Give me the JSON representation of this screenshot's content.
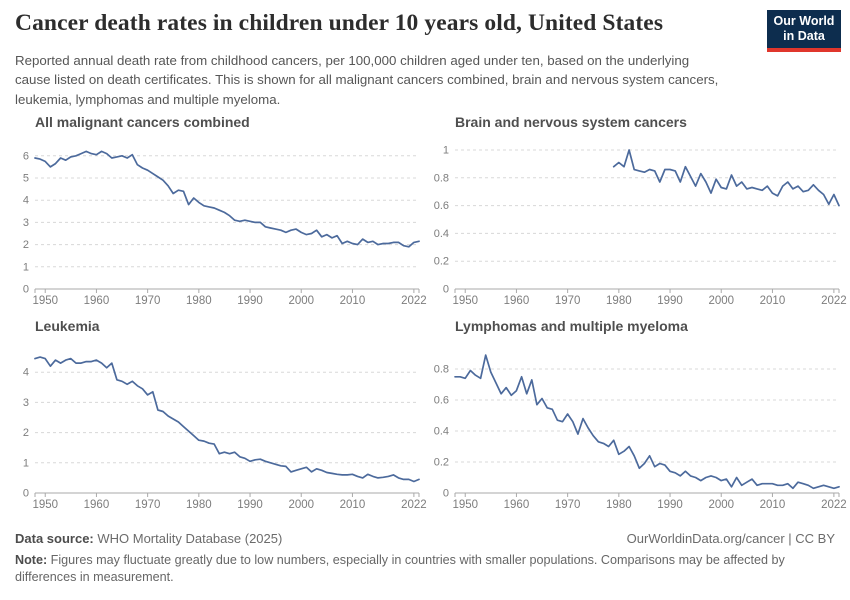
{
  "header": {
    "title": "Cancer death rates in children under 10 years old, United States",
    "subtitle": "Reported annual death rate from childhood cancers, per 100,000 children aged under ten, based on the underlying cause listed on death certificates. This is shown for all malignant cancers combined, brain and nervous system cancers, leukemia, lymphomas and multiple myeloma.",
    "logo": {
      "line1": "Our World",
      "line2": "in Data",
      "bg": "#0d2d4e",
      "stripe": "#e0362c"
    }
  },
  "footer": {
    "source_label": "Data source:",
    "source_value": " WHO Mortality Database (2025)",
    "link": "OurWorldinData.org/cancer | CC BY",
    "note_label": "Note:",
    "note_value": " Figures may fluctuate greatly due to low numbers, especially in countries with smaller populations. Comparisons may be affected by differences in measurement."
  },
  "colors": {
    "line": "#4c6a9c",
    "grid": "#d8d8d8",
    "axis": "#a9a9a9",
    "tick_label": "#7d7d7d",
    "panel_title": "#4f4f4f"
  },
  "chart_data": [
    {
      "type": "line",
      "title": "All malignant cancers combined",
      "start_year": 1948,
      "end_year": 2023,
      "x_domain": [
        1948,
        2023
      ],
      "x_ticks": [
        1950,
        1960,
        1970,
        1980,
        1990,
        2000,
        2010,
        2022
      ],
      "x_tick_labels": [
        "1950",
        "1960",
        "1970",
        "1980",
        "1990",
        "2000",
        "2010",
        "2022"
      ],
      "ylim": [
        0,
        6
      ],
      "y_ticks": [
        0,
        1,
        2,
        3,
        4,
        5,
        6
      ],
      "y_tick_labels": [
        "0",
        "1",
        "2",
        "3",
        "4",
        "5",
        "6"
      ],
      "grid": true,
      "legend": "none",
      "values": [
        5.9,
        5.85,
        5.75,
        5.5,
        5.65,
        5.9,
        5.8,
        5.95,
        6.0,
        6.1,
        6.2,
        6.1,
        6.05,
        6.2,
        6.1,
        5.9,
        5.95,
        6.0,
        5.9,
        6.05,
        5.6,
        5.45,
        5.35,
        5.2,
        5.05,
        4.9,
        4.65,
        4.3,
        4.45,
        4.4,
        3.8,
        4.1,
        3.9,
        3.75,
        3.7,
        3.65,
        3.55,
        3.45,
        3.3,
        3.1,
        3.05,
        3.1,
        3.05,
        3.0,
        3.0,
        2.8,
        2.75,
        2.7,
        2.65,
        2.55,
        2.65,
        2.7,
        2.55,
        2.45,
        2.5,
        2.65,
        2.35,
        2.45,
        2.3,
        2.4,
        2.05,
        2.15,
        2.05,
        2.0,
        2.25,
        2.1,
        2.15,
        2.0,
        2.05,
        2.05,
        2.1,
        2.1,
        1.95,
        1.9,
        2.1,
        2.15
      ]
    },
    {
      "type": "line",
      "title": "Brain and nervous system cancers",
      "start_year": 1979,
      "end_year": 2023,
      "x_domain": [
        1948,
        2023
      ],
      "x_ticks": [
        1950,
        1960,
        1970,
        1980,
        1990,
        2000,
        2010,
        2022
      ],
      "x_tick_labels": [
        "1950",
        "1960",
        "1970",
        "1980",
        "1990",
        "2000",
        "2010",
        "2022"
      ],
      "ylim": [
        0,
        1
      ],
      "y_ticks": [
        0,
        0.2,
        0.4,
        0.6,
        0.8,
        1
      ],
      "y_tick_labels": [
        "0",
        "0.2",
        "0.4",
        "0.6",
        "0.8",
        "1"
      ],
      "grid": true,
      "legend": "none",
      "values": [
        0.88,
        0.91,
        0.88,
        1.0,
        0.86,
        0.85,
        0.84,
        0.86,
        0.85,
        0.77,
        0.86,
        0.86,
        0.85,
        0.77,
        0.88,
        0.81,
        0.74,
        0.83,
        0.77,
        0.69,
        0.79,
        0.73,
        0.72,
        0.82,
        0.74,
        0.77,
        0.72,
        0.73,
        0.72,
        0.71,
        0.74,
        0.69,
        0.67,
        0.74,
        0.77,
        0.72,
        0.74,
        0.7,
        0.71,
        0.75,
        0.71,
        0.68,
        0.61,
        0.68,
        0.6
      ]
    },
    {
      "type": "line",
      "title": "Leukemia",
      "start_year": 1948,
      "end_year": 2023,
      "x_domain": [
        1948,
        2023
      ],
      "x_ticks": [
        1950,
        1960,
        1970,
        1980,
        1990,
        2000,
        2010,
        2022
      ],
      "x_tick_labels": [
        "1950",
        "1960",
        "1970",
        "1980",
        "1990",
        "2000",
        "2010",
        "2022"
      ],
      "ylim": [
        0,
        4
      ],
      "y_ticks": [
        0,
        1,
        2,
        3,
        4
      ],
      "y_tick_labels": [
        "0",
        "1",
        "2",
        "3",
        "4"
      ],
      "grid": true,
      "legend": "none",
      "values": [
        4.45,
        4.5,
        4.45,
        4.2,
        4.4,
        4.3,
        4.4,
        4.45,
        4.3,
        4.3,
        4.35,
        4.35,
        4.4,
        4.3,
        4.15,
        4.3,
        3.75,
        3.7,
        3.6,
        3.7,
        3.55,
        3.45,
        3.25,
        3.35,
        2.75,
        2.7,
        2.55,
        2.45,
        2.35,
        2.2,
        2.05,
        1.9,
        1.75,
        1.72,
        1.65,
        1.62,
        1.3,
        1.35,
        1.3,
        1.35,
        1.2,
        1.15,
        1.05,
        1.1,
        1.12,
        1.05,
        1.0,
        0.95,
        0.9,
        0.88,
        0.7,
        0.75,
        0.8,
        0.85,
        0.7,
        0.8,
        0.75,
        0.68,
        0.65,
        0.62,
        0.6,
        0.6,
        0.62,
        0.55,
        0.5,
        0.62,
        0.55,
        0.5,
        0.52,
        0.55,
        0.6,
        0.5,
        0.45,
        0.45,
        0.38,
        0.45
      ]
    },
    {
      "type": "line",
      "title": "Lymphomas and multiple myeloma",
      "start_year": 1948,
      "end_year": 2023,
      "x_domain": [
        1948,
        2023
      ],
      "x_ticks": [
        1950,
        1960,
        1970,
        1980,
        1990,
        2000,
        2010,
        2022
      ],
      "x_tick_labels": [
        "1950",
        "1960",
        "1970",
        "1980",
        "1990",
        "2000",
        "2010",
        "2022"
      ],
      "ylim": [
        0,
        0.8
      ],
      "y_ticks": [
        0,
        0.2,
        0.4,
        0.6,
        0.8
      ],
      "y_tick_labels": [
        "0",
        "0.2",
        "0.4",
        "0.6",
        "0.8"
      ],
      "grid": true,
      "legend": "none",
      "values": [
        0.75,
        0.75,
        0.74,
        0.79,
        0.76,
        0.74,
        0.89,
        0.78,
        0.71,
        0.64,
        0.68,
        0.63,
        0.66,
        0.75,
        0.64,
        0.73,
        0.57,
        0.61,
        0.55,
        0.54,
        0.47,
        0.46,
        0.51,
        0.46,
        0.38,
        0.48,
        0.42,
        0.37,
        0.33,
        0.32,
        0.3,
        0.34,
        0.25,
        0.27,
        0.3,
        0.24,
        0.16,
        0.19,
        0.24,
        0.17,
        0.19,
        0.18,
        0.14,
        0.13,
        0.11,
        0.14,
        0.11,
        0.1,
        0.08,
        0.1,
        0.11,
        0.1,
        0.08,
        0.09,
        0.04,
        0.1,
        0.05,
        0.07,
        0.09,
        0.05,
        0.06,
        0.06,
        0.06,
        0.05,
        0.05,
        0.06,
        0.03,
        0.07,
        0.06,
        0.05,
        0.03,
        0.04,
        0.05,
        0.04,
        0.03,
        0.04
      ]
    }
  ]
}
